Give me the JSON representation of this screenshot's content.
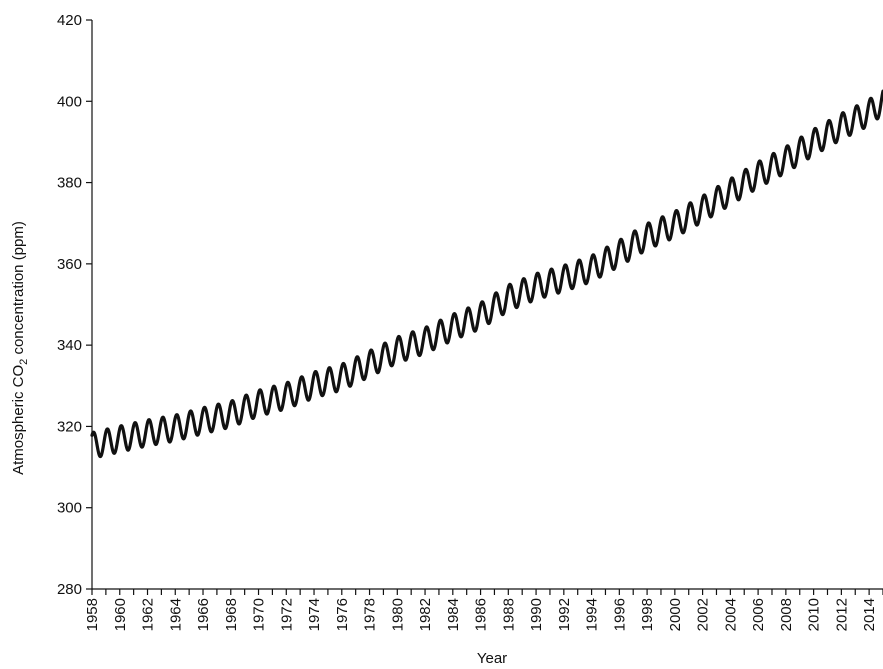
{
  "chart_data": {
    "type": "line",
    "title": "",
    "xlabel": "Year",
    "ylabel_main": "Atmospheric CO",
    "ylabel_sub": "2",
    "ylabel_tail": " concentration (ppm)",
    "xlim": [
      1958,
      2015
    ],
    "ylim": [
      280,
      420
    ],
    "yticks": [
      280,
      300,
      320,
      340,
      360,
      380,
      400,
      420
    ],
    "xticks": [
      1958,
      1960,
      1962,
      1964,
      1966,
      1968,
      1970,
      1972,
      1974,
      1976,
      1978,
      1980,
      1982,
      1984,
      1986,
      1988,
      1990,
      1992,
      1994,
      1996,
      1998,
      2000,
      2002,
      2004,
      2006,
      2008,
      2010,
      2012,
      2014
    ],
    "grid": false,
    "series": [
      {
        "annual_mean_x": [
          1958,
          1960,
          1962,
          1964,
          1966,
          1968,
          1970,
          1972,
          1974,
          1976,
          1978,
          1980,
          1982,
          1984,
          1986,
          1988,
          1990,
          1992,
          1994,
          1996,
          1998,
          2000,
          2002,
          2004,
          2006,
          2008,
          2010,
          2012,
          2014,
          2015
        ],
        "annual_mean_y": [
          315.3,
          316.9,
          318.4,
          319.6,
          321.4,
          323.0,
          325.7,
          327.5,
          330.2,
          332.1,
          335.4,
          338.8,
          341.1,
          344.4,
          347.2,
          351.6,
          354.4,
          356.4,
          358.8,
          362.6,
          366.7,
          369.7,
          373.5,
          377.7,
          381.9,
          385.6,
          389.9,
          393.8,
          397.2,
          400.0
        ],
        "seasonal_amplitude_ppm": 3.2,
        "cycles_per_year": 1
      }
    ]
  }
}
